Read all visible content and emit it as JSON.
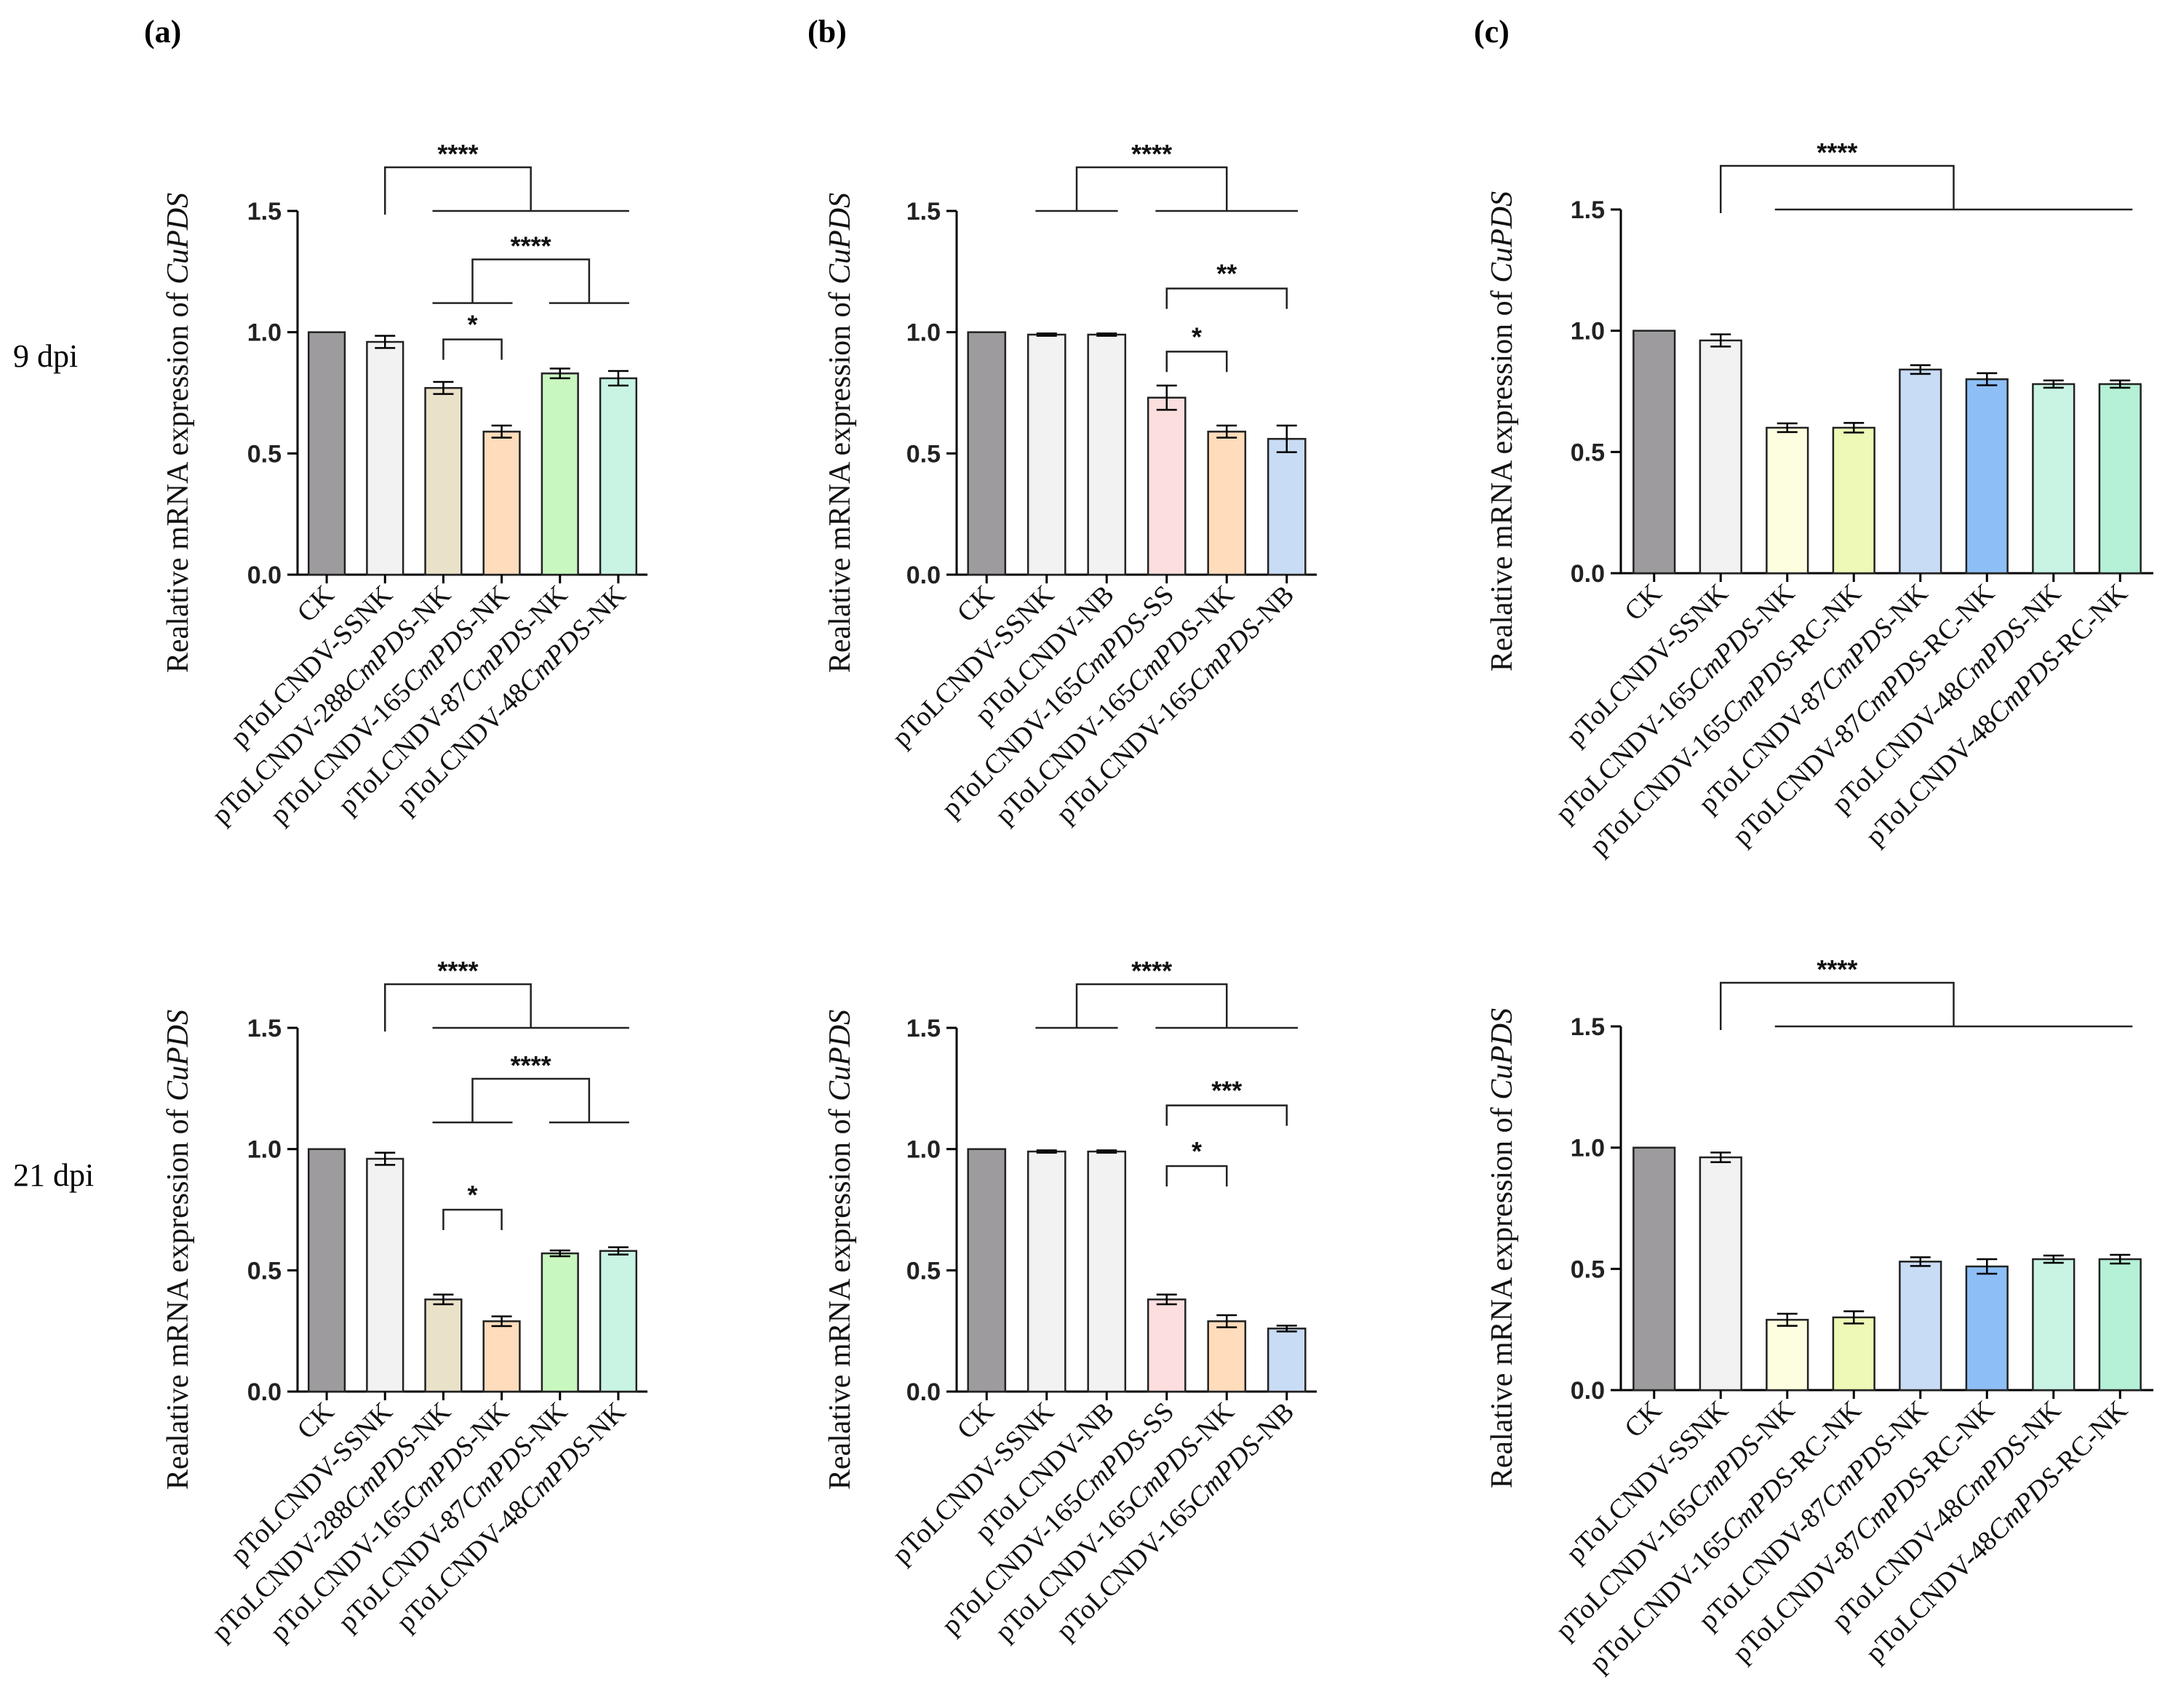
{
  "figure": {
    "panel_labels": [
      "(a)",
      "(b)",
      "(c)"
    ],
    "row_labels": [
      "9 dpi",
      "21 dpi"
    ],
    "ylabel_prefix": "Realative mRNA expression of ",
    "ylabel_gene": "CuPDS",
    "colors": {
      "CK": "#9d9b9e",
      "SSNK": "#f2f2f2",
      "NB": "#f2f2f2",
      "288NK": "#e9e2c9",
      "165NK": "#fedcbc",
      "87NK_a": "#c8f7c0",
      "48NK_a": "#c9f4e4",
      "165SS": "#fcdede",
      "165NB": "#c9dcf5",
      "165NK_c": "#fdfde0",
      "165RC": "#eef9b6",
      "87NK_c": "#c9dcf5",
      "87RC": "#8dbff6",
      "48NK_c": "#c9f4e4",
      "48RC": "#b4f1d6"
    }
  },
  "chart_data": [
    {
      "panel": "(a)",
      "row": "9 dpi",
      "type": "bar",
      "title": "",
      "xlabel": "",
      "ylabel": "Realative mRNA expression of CuPDS",
      "ylim": [
        0,
        1.5
      ],
      "yticks": [
        "0.0",
        "0.5",
        "1.0",
        "1.5"
      ],
      "categories": [
        [
          {
            "t": "CK"
          }
        ],
        [
          {
            "t": "pToLCNDV-SSNK"
          }
        ],
        [
          {
            "t": "pToLCNDV-288"
          },
          {
            "t": "CmPDS",
            "i": true
          },
          {
            "t": "-NK"
          }
        ],
        [
          {
            "t": "pToLCNDV-165"
          },
          {
            "t": "CmPDS",
            "i": true
          },
          {
            "t": "-NK"
          }
        ],
        [
          {
            "t": "pToLCNDV-87"
          },
          {
            "t": "CmPDS",
            "i": true
          },
          {
            "t": "-NK"
          }
        ],
        [
          {
            "t": "pToLCNDV-48"
          },
          {
            "t": "CmPDS",
            "i": true
          },
          {
            "t": "-NK"
          }
        ]
      ],
      "values": [
        1.0,
        0.96,
        0.77,
        0.59,
        0.83,
        0.81
      ],
      "errors": [
        0.0,
        0.025,
        0.025,
        0.025,
        0.02,
        0.03
      ],
      "colors": [
        "#9d9b9e",
        "#f2f2f2",
        "#e9e2c9",
        "#fedcbc",
        "#c8f7c0",
        "#c9f4e4"
      ],
      "annotations": [
        {
          "type": "group",
          "label": "****",
          "left": [
            1
          ],
          "right": [
            2,
            5
          ],
          "level": 1.5
        },
        {
          "type": "group",
          "label": "****",
          "left": [
            2,
            3
          ],
          "right": [
            4,
            5
          ],
          "level": 1.12
        },
        {
          "type": "pair",
          "label": "*",
          "from": 2,
          "to": 3,
          "level": 0.97
        }
      ]
    },
    {
      "panel": "(b)",
      "row": "9 dpi",
      "type": "bar",
      "title": "",
      "xlabel": "",
      "ylabel": "Realative mRNA expression of CuPDS",
      "ylim": [
        0,
        1.5
      ],
      "yticks": [
        "0.0",
        "0.5",
        "1.0",
        "1.5"
      ],
      "categories": [
        [
          {
            "t": "CK"
          }
        ],
        [
          {
            "t": "pToLCNDV-SSNK"
          }
        ],
        [
          {
            "t": "pToLCNDV-NB"
          }
        ],
        [
          {
            "t": "pToLCNDV-165"
          },
          {
            "t": "CmPDS",
            "i": true
          },
          {
            "t": "-SS"
          }
        ],
        [
          {
            "t": "pToLCNDV-165"
          },
          {
            "t": "CmPDS",
            "i": true
          },
          {
            "t": "-NK"
          }
        ],
        [
          {
            "t": "pToLCNDV-165"
          },
          {
            "t": "CmPDS",
            "i": true
          },
          {
            "t": "-NB"
          }
        ]
      ],
      "values": [
        1.0,
        0.99,
        0.99,
        0.73,
        0.59,
        0.56
      ],
      "errors": [
        0.0,
        0.005,
        0.005,
        0.05,
        0.025,
        0.055
      ],
      "colors": [
        "#9d9b9e",
        "#f2f2f2",
        "#f2f2f2",
        "#fcdede",
        "#fedcbc",
        "#c9dcf5"
      ],
      "annotations": [
        {
          "type": "group",
          "label": "****",
          "left": [
            1,
            2
          ],
          "right": [
            3,
            5
          ],
          "level": 1.5
        },
        {
          "type": "pair",
          "label": "**",
          "from": 3,
          "to": 5,
          "level": 1.18
        },
        {
          "type": "pair",
          "label": "*",
          "from": 3,
          "to": 4,
          "level": 0.92
        }
      ]
    },
    {
      "panel": "(c)",
      "row": "9 dpi",
      "type": "bar",
      "title": "",
      "xlabel": "",
      "ylabel": "Realative mRNA expression of CuPDS",
      "ylim": [
        0,
        1.5
      ],
      "yticks": [
        "0.0",
        "0.5",
        "1.0",
        "1.5"
      ],
      "categories": [
        [
          {
            "t": "CK"
          }
        ],
        [
          {
            "t": "pToLCNDV-SSNK"
          }
        ],
        [
          {
            "t": "pToLCNDV-165"
          },
          {
            "t": "CmPDS",
            "i": true
          },
          {
            "t": "-NK"
          }
        ],
        [
          {
            "t": "pToLCNDV-165"
          },
          {
            "t": "CmPDS",
            "i": true
          },
          {
            "t": "-RC-NK"
          }
        ],
        [
          {
            "t": "pToLCNDV-87"
          },
          {
            "t": "CmPDS",
            "i": true
          },
          {
            "t": "-NK"
          }
        ],
        [
          {
            "t": "pToLCNDV-87"
          },
          {
            "t": "CmPDS",
            "i": true
          },
          {
            "t": "-RC-NK"
          }
        ],
        [
          {
            "t": "pToLCNDV-48"
          },
          {
            "t": "CmPDS",
            "i": true
          },
          {
            "t": "-NK"
          }
        ],
        [
          {
            "t": "pToLCNDV-48"
          },
          {
            "t": "CmPDS",
            "i": true
          },
          {
            "t": "-RC-NK"
          }
        ]
      ],
      "values": [
        1.0,
        0.96,
        0.6,
        0.6,
        0.84,
        0.8,
        0.78,
        0.78
      ],
      "errors": [
        0.0,
        0.025,
        0.018,
        0.02,
        0.018,
        0.025,
        0.015,
        0.015
      ],
      "colors": [
        "#9d9b9e",
        "#f2f2f2",
        "#fdfde0",
        "#eef9b6",
        "#c9dcf5",
        "#8dbff6",
        "#c9f4e4",
        "#b4f1d6"
      ],
      "annotations": [
        {
          "type": "group",
          "label": "****",
          "left": [
            1
          ],
          "right": [
            2,
            7
          ],
          "level": 1.5
        }
      ]
    },
    {
      "panel": "(a)",
      "row": "21 dpi",
      "type": "bar",
      "title": "",
      "xlabel": "",
      "ylabel": "Realative mRNA expression of CuPDS",
      "ylim": [
        0,
        1.5
      ],
      "yticks": [
        "0.0",
        "0.5",
        "1.0",
        "1.5"
      ],
      "categories": [
        [
          {
            "t": "CK"
          }
        ],
        [
          {
            "t": "pToLCNDV-SSNK"
          }
        ],
        [
          {
            "t": "pToLCNDV-288"
          },
          {
            "t": "CmPDS",
            "i": true
          },
          {
            "t": "-NK"
          }
        ],
        [
          {
            "t": "pToLCNDV-165"
          },
          {
            "t": "CmPDS",
            "i": true
          },
          {
            "t": "-NK"
          }
        ],
        [
          {
            "t": "pToLCNDV-87"
          },
          {
            "t": "CmPDS",
            "i": true
          },
          {
            "t": "-NK"
          }
        ],
        [
          {
            "t": "pToLCNDV-48"
          },
          {
            "t": "CmPDS",
            "i": true
          },
          {
            "t": "-NK"
          }
        ]
      ],
      "values": [
        1.0,
        0.96,
        0.38,
        0.29,
        0.57,
        0.58
      ],
      "errors": [
        0.0,
        0.025,
        0.02,
        0.02,
        0.012,
        0.015
      ],
      "colors": [
        "#9d9b9e",
        "#f2f2f2",
        "#e9e2c9",
        "#fedcbc",
        "#c8f7c0",
        "#c9f4e4"
      ],
      "annotations": [
        {
          "type": "group",
          "label": "****",
          "left": [
            1
          ],
          "right": [
            2,
            5
          ],
          "level": 1.5
        },
        {
          "type": "group",
          "label": "****",
          "left": [
            2,
            3
          ],
          "right": [
            4,
            5
          ],
          "level": 1.11
        },
        {
          "type": "pair",
          "label": "*",
          "from": 2,
          "to": 3,
          "level": 0.75
        }
      ]
    },
    {
      "panel": "(b)",
      "row": "21 dpi",
      "type": "bar",
      "title": "",
      "xlabel": "",
      "ylabel": "Realative mRNA expression of CuPDS",
      "ylim": [
        0,
        1.5
      ],
      "yticks": [
        "0.0",
        "0.5",
        "1.0",
        "1.5"
      ],
      "categories": [
        [
          {
            "t": "CK"
          }
        ],
        [
          {
            "t": "pToLCNDV-SSNK"
          }
        ],
        [
          {
            "t": "pToLCNDV-NB"
          }
        ],
        [
          {
            "t": "pToLCNDV-165"
          },
          {
            "t": "CmPDS",
            "i": true
          },
          {
            "t": "-SS"
          }
        ],
        [
          {
            "t": "pToLCNDV-165"
          },
          {
            "t": "CmPDS",
            "i": true
          },
          {
            "t": "-NK"
          }
        ],
        [
          {
            "t": "pToLCNDV-165"
          },
          {
            "t": "CmPDS",
            "i": true
          },
          {
            "t": "-NB"
          }
        ]
      ],
      "values": [
        1.0,
        0.99,
        0.99,
        0.38,
        0.29,
        0.26
      ],
      "errors": [
        0.0,
        0.005,
        0.005,
        0.02,
        0.025,
        0.012
      ],
      "colors": [
        "#9d9b9e",
        "#f2f2f2",
        "#f2f2f2",
        "#fcdede",
        "#fedcbc",
        "#c9dcf5"
      ],
      "annotations": [
        {
          "type": "group",
          "label": "****",
          "left": [
            1,
            2
          ],
          "right": [
            3,
            5
          ],
          "level": 1.5
        },
        {
          "type": "pair",
          "label": "***",
          "from": 3,
          "to": 5,
          "level": 1.18
        },
        {
          "type": "pair",
          "label": "*",
          "from": 3,
          "to": 4,
          "level": 0.93
        }
      ]
    },
    {
      "panel": "(c)",
      "row": "21 dpi",
      "type": "bar",
      "title": "",
      "xlabel": "",
      "ylabel": "Realative mRNA expression of CuPDS",
      "ylim": [
        0,
        1.5
      ],
      "yticks": [
        "0.0",
        "0.5",
        "1.0",
        "1.5"
      ],
      "categories": [
        [
          {
            "t": "CK"
          }
        ],
        [
          {
            "t": "pToLCNDV-SSNK"
          }
        ],
        [
          {
            "t": "pToLCNDV-165"
          },
          {
            "t": "CmPDS",
            "i": true
          },
          {
            "t": "-NK"
          }
        ],
        [
          {
            "t": "pToLCNDV-165"
          },
          {
            "t": "CmPDS",
            "i": true
          },
          {
            "t": "-RC-NK"
          }
        ],
        [
          {
            "t": "pToLCNDV-87"
          },
          {
            "t": "CmPDS",
            "i": true
          },
          {
            "t": "-NK"
          }
        ],
        [
          {
            "t": "pToLCNDV-87"
          },
          {
            "t": "CmPDS",
            "i": true
          },
          {
            "t": "-RC-NK"
          }
        ],
        [
          {
            "t": "pToLCNDV-48"
          },
          {
            "t": "CmPDS",
            "i": true
          },
          {
            "t": "-NK"
          }
        ],
        [
          {
            "t": "pToLCNDV-48"
          },
          {
            "t": "CmPDS",
            "i": true
          },
          {
            "t": "-RC-NK"
          }
        ]
      ],
      "values": [
        1.0,
        0.96,
        0.29,
        0.3,
        0.53,
        0.51,
        0.54,
        0.54
      ],
      "errors": [
        0.0,
        0.02,
        0.025,
        0.025,
        0.018,
        0.03,
        0.015,
        0.018
      ],
      "colors": [
        "#9d9b9e",
        "#f2f2f2",
        "#fdfde0",
        "#eef9b6",
        "#c9dcf5",
        "#8dbff6",
        "#c9f4e4",
        "#b4f1d6"
      ],
      "annotations": [
        {
          "type": "group",
          "label": "****",
          "left": [
            1
          ],
          "right": [
            2,
            7
          ],
          "level": 1.5
        }
      ]
    }
  ]
}
